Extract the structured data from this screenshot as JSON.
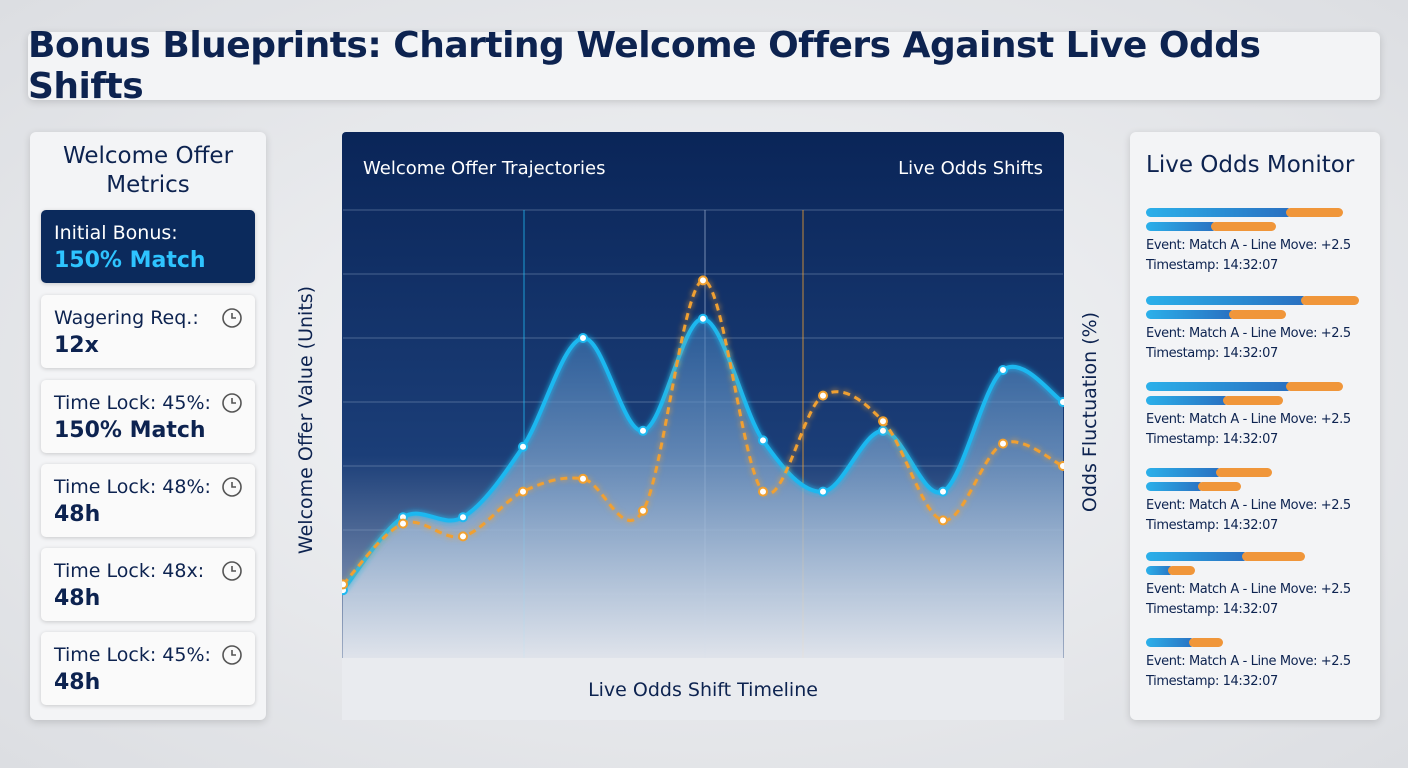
{
  "header": {
    "title": "Bonus Blueprints: Charting Welcome Offers Against Live Odds Shifts"
  },
  "metrics": {
    "title": "Welcome Offer Metrics",
    "cards": [
      {
        "label": "Initial Bonus:",
        "value": "150% Match"
      },
      {
        "label": "Wagering Req.:",
        "value": "12x"
      },
      {
        "label": "Time Lock: 45%:",
        "value": "150% Match"
      },
      {
        "label": "Time Lock: 48%:",
        "value": "48h"
      },
      {
        "label": "Time Lock: 48x:",
        "value": "48h"
      },
      {
        "label": "Time Lock: 45%:",
        "value": "48h"
      }
    ]
  },
  "chart_data": {
    "type": "line",
    "xlabel": "Live Odds Shift Timeline",
    "ylabel": "Welcome Offer Value (Units)",
    "y2label": "Odds Fluctuation (%)",
    "categories": [
      null,
      null,
      null,
      null,
      null,
      null,
      null,
      null,
      null,
      null,
      null,
      null,
      null
    ],
    "series": [
      {
        "name": "Welcome Offer Trajectories",
        "color": "#1fb8f0",
        "values": [
          1.06,
          2.2,
          2.2,
          3.3,
          5.0,
          3.55,
          5.3,
          3.4,
          2.6,
          3.55,
          2.6,
          4.5,
          4.0
        ]
      },
      {
        "name": "Live Odds Shifts",
        "color": "#f0a030",
        "axis": "y2",
        "values": [
          1.15,
          2.1,
          1.9,
          2.6,
          2.8,
          2.3,
          5.9,
          2.6,
          4.1,
          3.7,
          2.15,
          3.35,
          3.0
        ]
      }
    ],
    "ylim": [
      0,
      7
    ],
    "y2lim": [
      0,
      7
    ],
    "grid": true
  },
  "monitor": {
    "title": "Live Odds Monitor",
    "events": [
      {
        "event": "Event: Match A - Line Move: +2.5",
        "timestamp": "Timestamp: 14:32:07"
      },
      {
        "event": "Event: Match A - Line Move: +2.5",
        "timestamp": "Timestamp: 14:32:07"
      },
      {
        "event": "Event: Match A - Line Move: +2.5",
        "timestamp": "Timestamp: 14:32:07"
      },
      {
        "event": "Event: Match A - Line Move: +2.5",
        "timestamp": "Timestamp: 14:32:07"
      },
      {
        "event": "Event: Match A - Line Move: +2.5",
        "timestamp": "Timestamp: 14:32:07"
      },
      {
        "event": "Event: Match A - Line Move: +2.5",
        "timestamp": "Timestamp: 14:32:07"
      }
    ]
  }
}
